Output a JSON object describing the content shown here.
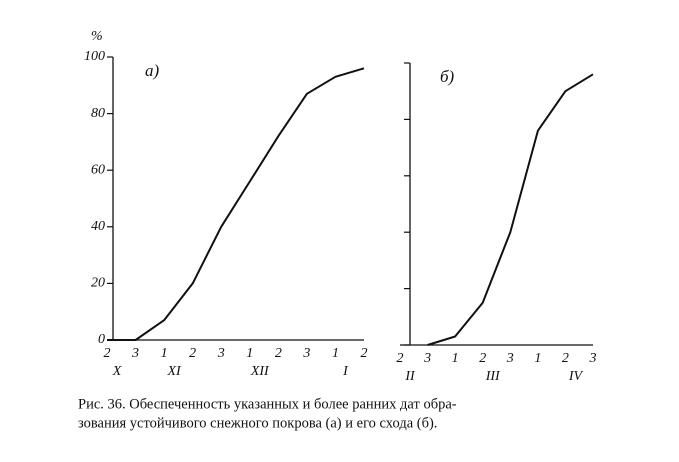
{
  "chart_data": [
    {
      "type": "line",
      "panel_label": "а)",
      "unit_label": "%",
      "categories": [
        "2",
        "3",
        "1",
        "2",
        "3",
        "1",
        "2",
        "3",
        "1",
        "2"
      ],
      "month_labels": [
        "X",
        null,
        "XI",
        null,
        null,
        "XII",
        null,
        null,
        "I",
        null
      ],
      "values": [
        0,
        0,
        7,
        20,
        40,
        56,
        72,
        87,
        93,
        96
      ],
      "ylim": [
        0,
        100
      ],
      "yticks": [
        0,
        20,
        40,
        60,
        80,
        100
      ],
      "tick_labels": true,
      "color": "#111"
    },
    {
      "type": "line",
      "panel_label": "б)",
      "categories": [
        "2",
        "3",
        "1",
        "2",
        "3",
        "1",
        "2",
        "3"
      ],
      "month_labels": [
        "II",
        null,
        null,
        "III",
        null,
        null,
        "IV",
        null
      ],
      "values": [
        null,
        0,
        3,
        15,
        40,
        76,
        90,
        96
      ],
      "ylim": [
        0,
        100
      ],
      "yticks": [
        0,
        20,
        40,
        60,
        80,
        100
      ],
      "tick_labels": false,
      "color": "#111"
    }
  ],
  "caption": [
    "Рис. 36. Обеспеченность указанных и более ранних дат обра-",
    "зования устойчивого снежного покрова (а) и его схода (б)."
  ]
}
